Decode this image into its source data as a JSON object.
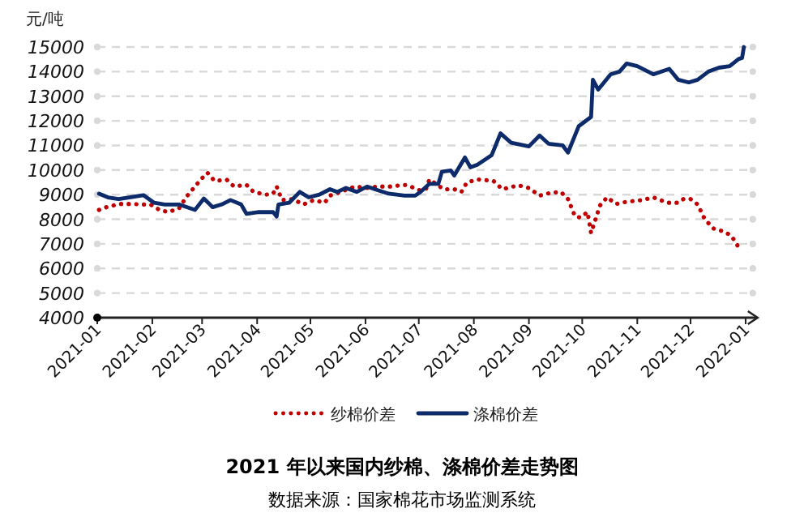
{
  "chart_data": {
    "type": "line",
    "title": "2021 年以来国内纱棉、涤棉价差走势图",
    "annotations": [
      "数据来源：国家棉花市场监测系统"
    ],
    "ylabel": "元/吨",
    "xlim": [
      "2021-01-01",
      "2022-01-05"
    ],
    "xticks": [
      "2021-01",
      "2021-02",
      "2021-03",
      "2021-04",
      "2021-05",
      "2021-06",
      "2021-07",
      "2021-08",
      "2021-09",
      "2021-10",
      "2021-11",
      "2021-12",
      "2022-01"
    ],
    "ylim": [
      4000,
      15000
    ],
    "yticks": [
      4000,
      5000,
      6000,
      7000,
      8000,
      9000,
      10000,
      11000,
      12000,
      13000,
      14000,
      15000
    ],
    "grid": "y",
    "legend": "bottom",
    "series": [
      {
        "name": "纱棉价差",
        "color": "#c00000",
        "line_style": "dotted",
        "x": [
          "2021-01-02",
          "2021-01-07",
          "2021-01-14",
          "2021-01-20",
          "2021-01-27",
          "2021-01-31",
          "2021-02-05",
          "2021-02-10",
          "2021-02-16",
          "2021-02-20",
          "2021-02-25",
          "2021-03-01",
          "2021-03-04",
          "2021-03-08",
          "2021-03-15",
          "2021-03-19",
          "2021-03-26",
          "2021-03-30",
          "2021-04-06",
          "2021-04-10",
          "2021-04-12",
          "2021-04-15",
          "2021-04-21",
          "2021-04-27",
          "2021-05-03",
          "2021-05-09",
          "2021-05-12",
          "2021-05-18",
          "2021-05-26",
          "2021-06-02",
          "2021-06-08",
          "2021-06-16",
          "2021-06-22",
          "2021-06-25",
          "2021-07-01",
          "2021-07-05",
          "2021-07-07",
          "2021-07-15",
          "2021-07-21",
          "2021-07-25",
          "2021-07-28",
          "2021-08-03",
          "2021-08-12",
          "2021-08-17",
          "2021-08-26",
          "2021-09-01",
          "2021-09-07",
          "2021-09-13",
          "2021-09-19",
          "2021-09-23",
          "2021-09-27",
          "2021-09-30",
          "2021-10-04",
          "2021-10-06",
          "2021-10-08",
          "2021-10-11",
          "2021-10-15",
          "2021-10-20",
          "2021-10-26",
          "2021-11-04",
          "2021-11-10",
          "2021-11-18",
          "2021-11-24",
          "2021-11-27",
          "2021-12-01",
          "2021-12-05",
          "2021-12-09",
          "2021-12-14",
          "2021-12-20",
          "2021-12-24",
          "2021-12-29"
        ],
        "values": [
          8380,
          8510,
          8620,
          8620,
          8600,
          8600,
          8380,
          8290,
          8440,
          8890,
          9330,
          9670,
          9890,
          9560,
          9600,
          9330,
          9400,
          9110,
          9000,
          9040,
          9330,
          8780,
          8820,
          8600,
          8780,
          8670,
          8960,
          9110,
          9330,
          9270,
          9330,
          9330,
          9400,
          9380,
          9180,
          9220,
          9620,
          9220,
          9220,
          9110,
          9490,
          9620,
          9560,
          9220,
          9380,
          9270,
          8960,
          9070,
          9110,
          8820,
          8110,
          8070,
          8290,
          7440,
          7890,
          8560,
          8890,
          8620,
          8710,
          8780,
          8890,
          8670,
          8670,
          8820,
          8820,
          8600,
          8000,
          7620,
          7490,
          7330,
          6750
        ]
      },
      {
        "name": "涤棉价差",
        "color": "#0d2a6b",
        "line_style": "solid",
        "x": [
          "2021-01-02",
          "2021-01-07",
          "2021-01-13",
          "2021-01-19",
          "2021-01-27",
          "2021-02-02",
          "2021-02-08",
          "2021-02-16",
          "2021-02-25",
          "2021-03-02",
          "2021-03-07",
          "2021-03-12",
          "2021-03-17",
          "2021-03-23",
          "2021-03-26",
          "2021-04-02",
          "2021-04-10",
          "2021-04-12",
          "2021-04-13",
          "2021-04-19",
          "2021-04-25",
          "2021-04-30",
          "2021-05-06",
          "2021-05-12",
          "2021-05-16",
          "2021-05-21",
          "2021-05-27",
          "2021-06-02",
          "2021-06-08",
          "2021-06-14",
          "2021-06-23",
          "2021-06-29",
          "2021-07-02",
          "2021-07-07",
          "2021-07-12",
          "2021-07-14",
          "2021-07-19",
          "2021-07-21",
          "2021-07-27",
          "2021-07-30",
          "2021-08-03",
          "2021-08-11",
          "2021-08-16",
          "2021-08-22",
          "2021-09-01",
          "2021-09-07",
          "2021-09-12",
          "2021-09-20",
          "2021-09-23",
          "2021-09-29",
          "2021-10-06",
          "2021-10-07",
          "2021-10-10",
          "2021-10-17",
          "2021-10-22",
          "2021-10-26",
          "2021-11-01",
          "2021-11-10",
          "2021-11-19",
          "2021-11-24",
          "2021-11-30",
          "2021-12-05",
          "2021-12-11",
          "2021-12-17",
          "2021-12-23",
          "2021-12-28",
          "2021-12-30",
          "2021-12-31"
        ],
        "values": [
          9040,
          8890,
          8820,
          8890,
          8980,
          8670,
          8600,
          8600,
          8380,
          8840,
          8490,
          8600,
          8780,
          8600,
          8220,
          8290,
          8290,
          8110,
          8600,
          8670,
          9110,
          8890,
          9000,
          9220,
          9110,
          9270,
          9110,
          9330,
          9180,
          9040,
          8960,
          8960,
          9110,
          9440,
          9440,
          9930,
          9980,
          9780,
          10510,
          10110,
          10220,
          10600,
          11490,
          11110,
          10960,
          11400,
          11070,
          11000,
          10710,
          11780,
          12160,
          13670,
          13270,
          13890,
          14000,
          14330,
          14220,
          13890,
          14110,
          13670,
          13560,
          13670,
          14000,
          14160,
          14220,
          14510,
          14560,
          15000
        ]
      }
    ]
  }
}
